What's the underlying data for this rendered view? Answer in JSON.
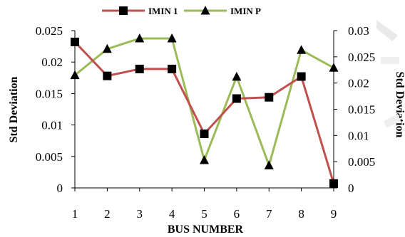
{
  "chart_data": {
    "type": "line",
    "categories": [
      "1",
      "2",
      "3",
      "4",
      "5",
      "6",
      "7",
      "8",
      "9"
    ],
    "xlabel": "BUS NUMBER",
    "ylabel_left": "Std Deviation",
    "ylabel_right": "Std Deviation",
    "y_left_lim": [
      0,
      0.025
    ],
    "y_right_lim": [
      0,
      0.03
    ],
    "y_left_ticks": [
      "0",
      "0.005",
      "0.01",
      "0.015",
      "0.02",
      "0.025"
    ],
    "y_right_ticks": [
      "0",
      "0.005",
      "0.01",
      "0.015",
      "0.02",
      "0.025",
      "0.03"
    ],
    "grid": false,
    "legend_position": "top-center",
    "series": [
      {
        "name": "IMIN 1",
        "axis": "left",
        "marker": "square",
        "color": "#C0504D",
        "values": [
          0.0232,
          0.0178,
          0.0189,
          0.0189,
          0.0086,
          0.0142,
          0.0144,
          0.0177,
          0.0007
        ]
      },
      {
        "name": "IMIN P",
        "axis": "right",
        "marker": "triangle",
        "color": "#9BBB59",
        "values": [
          0.0215,
          0.0265,
          0.0285,
          0.0285,
          0.0053,
          0.0212,
          0.0043,
          0.0263,
          0.0229
        ]
      }
    ]
  }
}
